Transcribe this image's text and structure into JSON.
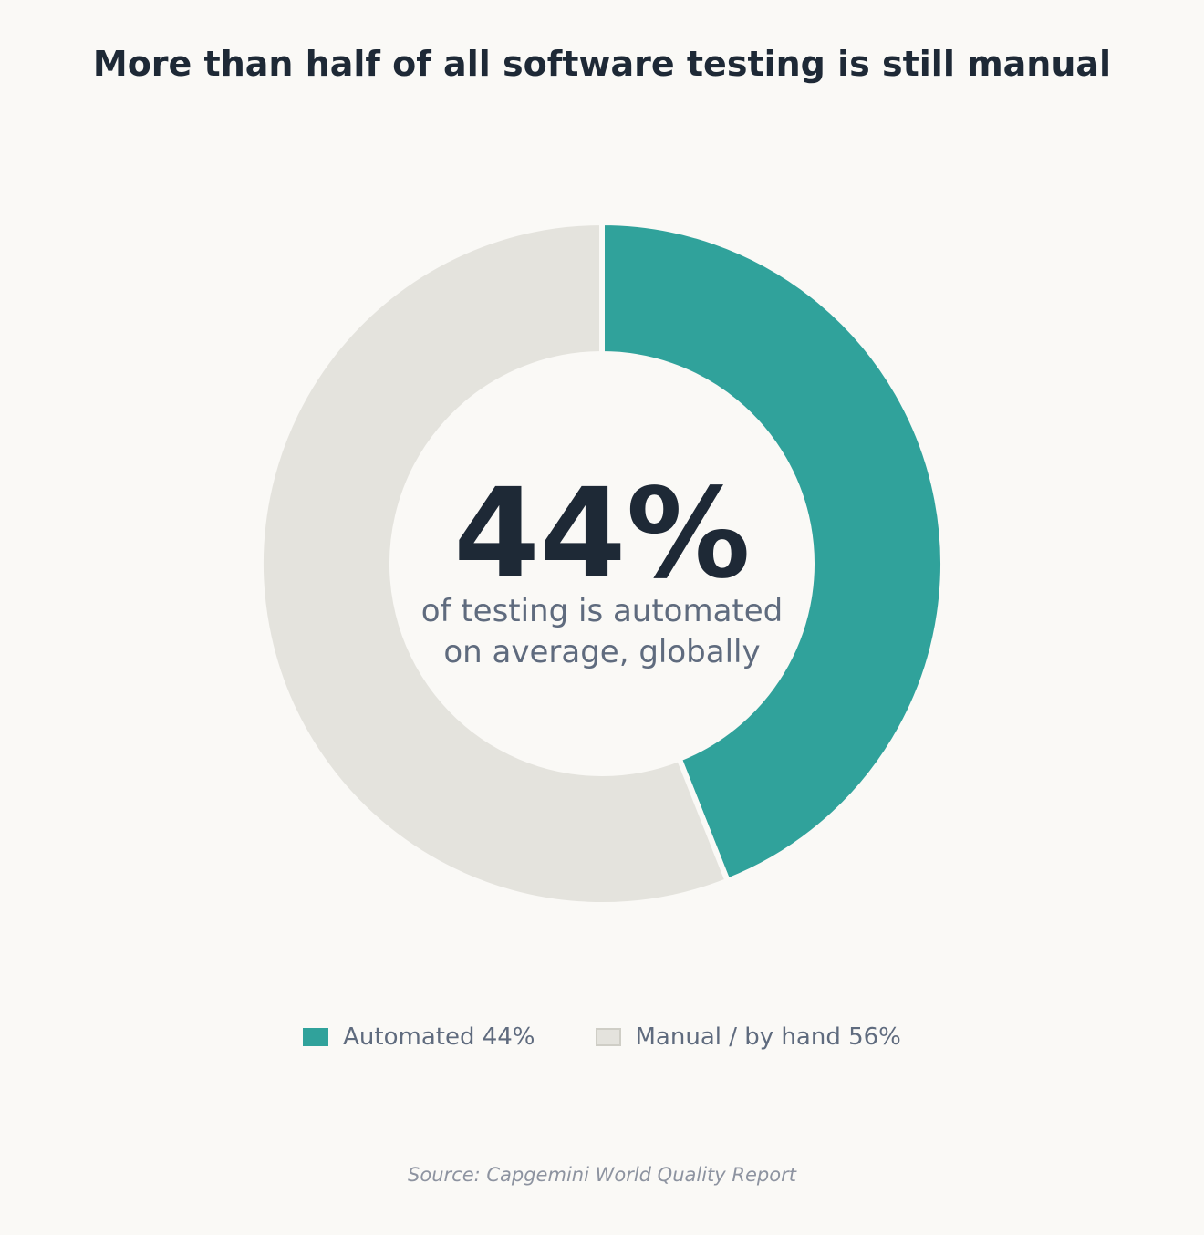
{
  "title": "More than half of all software testing is still manual",
  "source": "Source: Capgemini World Quality Report",
  "colors": {
    "background": "#faf9f6",
    "automated": "#30a29b",
    "manual": "#e4e3dd",
    "manual_border": "#cfcec6",
    "title": "#1e2936",
    "subtext": "#5f6b7e",
    "source": "#8d93a0"
  },
  "center": {
    "big_value": "44%",
    "line1": "of testing is automated",
    "line2": "on average, globally"
  },
  "legend": [
    {
      "label": "Automated 44%"
    },
    {
      "label": "Manual / by hand 56%"
    }
  ],
  "chart_data": {
    "type": "pie",
    "title": "More than half of all software testing is still manual",
    "slices": [
      {
        "name": "Automated",
        "value": 44
      },
      {
        "name": "Manual / by hand",
        "value": 56
      }
    ],
    "legend_position": "bottom"
  }
}
